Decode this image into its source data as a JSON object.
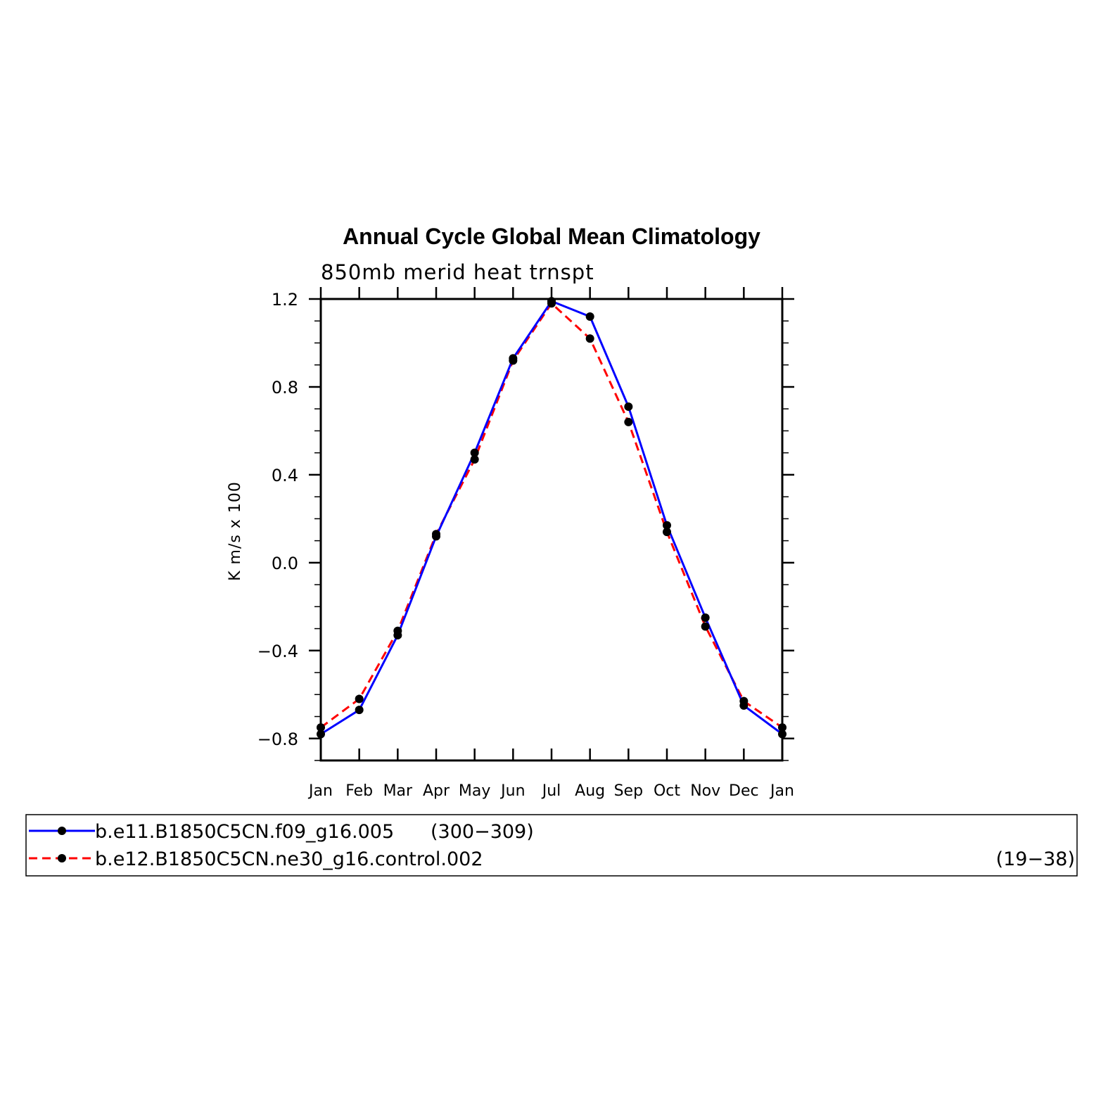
{
  "chart_data": {
    "type": "line",
    "title": "Annual Cycle Global Mean Climatology",
    "subtitle": "850mb merid heat trnspt",
    "xlabel": "",
    "ylabel": "K m/s x 100",
    "categories": [
      "Jan",
      "Feb",
      "Mar",
      "Apr",
      "May",
      "Jun",
      "Jul",
      "Aug",
      "Sep",
      "Oct",
      "Nov",
      "Dec",
      "Jan"
    ],
    "ylim": [
      -0.9,
      1.2
    ],
    "yticks": [
      -0.8,
      -0.4,
      0.0,
      0.4,
      0.8,
      1.2
    ],
    "ytick_labels": [
      "−0.8",
      "−0.4",
      "0.0",
      "0.4",
      "0.8",
      "1.2"
    ],
    "grid": false,
    "legend_position": "bottom",
    "series": [
      {
        "name": "b.e11.B1850C5CN.f09_g16.005",
        "years": "(300−309)",
        "color": "#0000ff",
        "line_style": "solid",
        "marker": "filled-circle",
        "values": [
          -0.78,
          -0.67,
          -0.33,
          0.12,
          0.5,
          0.93,
          1.19,
          1.12,
          0.71,
          0.17,
          -0.25,
          -0.65,
          -0.78
        ]
      },
      {
        "name": "b.e12.B1850C5CN.ne30_g16.control.002",
        "years": "(19−38)",
        "color": "#ff0000",
        "line_style": "dashed",
        "marker": "filled-circle",
        "values": [
          -0.75,
          -0.62,
          -0.31,
          0.13,
          0.47,
          0.92,
          1.18,
          1.02,
          0.64,
          0.14,
          -0.29,
          -0.63,
          -0.75
        ]
      }
    ]
  }
}
